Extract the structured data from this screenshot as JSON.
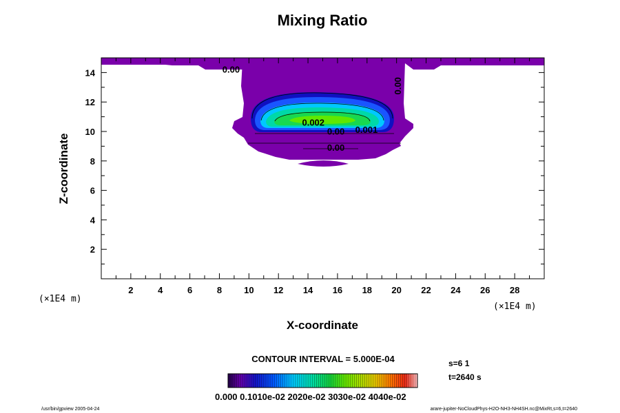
{
  "colors": {
    "purple": "#7a00aa",
    "darkblue": "#1010c0",
    "blue": "#1a55ff",
    "cyan": "#00c8ff",
    "teal": "#00d8a8",
    "green": "#18d850",
    "lime": "#60e800"
  },
  "chart_data": {
    "type": "contour",
    "title": "Mixing Ratio",
    "xlabel": "X-coordinate",
    "ylabel": "Z-coordinate",
    "x_unit": "(×1E4 m)",
    "y_unit": "(×1E4 m)",
    "xlim": [
      0,
      30
    ],
    "ylim": [
      0,
      15
    ],
    "x_ticks": [
      "2",
      "4",
      "6",
      "8",
      "10",
      "12",
      "14",
      "16",
      "18",
      "20",
      "22",
      "24",
      "26",
      "28"
    ],
    "y_ticks": [
      "2",
      "4",
      "6",
      "8",
      "10",
      "12",
      "14"
    ],
    "contour_interval": "CONTOUR INTERVAL = 5.000E-04",
    "contour_labels": [
      {
        "text": "0.00",
        "x": 8.2,
        "z": 14.0
      },
      {
        "text": "0.00",
        "x": 20.3,
        "z": 12.5,
        "rotate": -90
      },
      {
        "text": "0.002",
        "x": 13.6,
        "z": 10.4
      },
      {
        "text": "0.00",
        "x": 15.3,
        "z": 9.8
      },
      {
        "text": "0.001",
        "x": 17.2,
        "z": 9.9
      },
      {
        "text": "0.00",
        "x": 15.3,
        "z": 8.7
      }
    ],
    "colorbar": {
      "tick_label_text": "0.000 0.1010e-02 2020e-02 3030e-02 4040e-02",
      "range": [
        0,
        0.0045
      ]
    },
    "info": {
      "step": "s=6 1",
      "time": "t=2640 s"
    },
    "footer_left": "/usr/bin/gpview 2005-04-24",
    "footer_right": "arare-jupiter-NoCloudPhys-H2O-NH3-NH4SH.nc@MixRt,s=6,t=2640"
  }
}
